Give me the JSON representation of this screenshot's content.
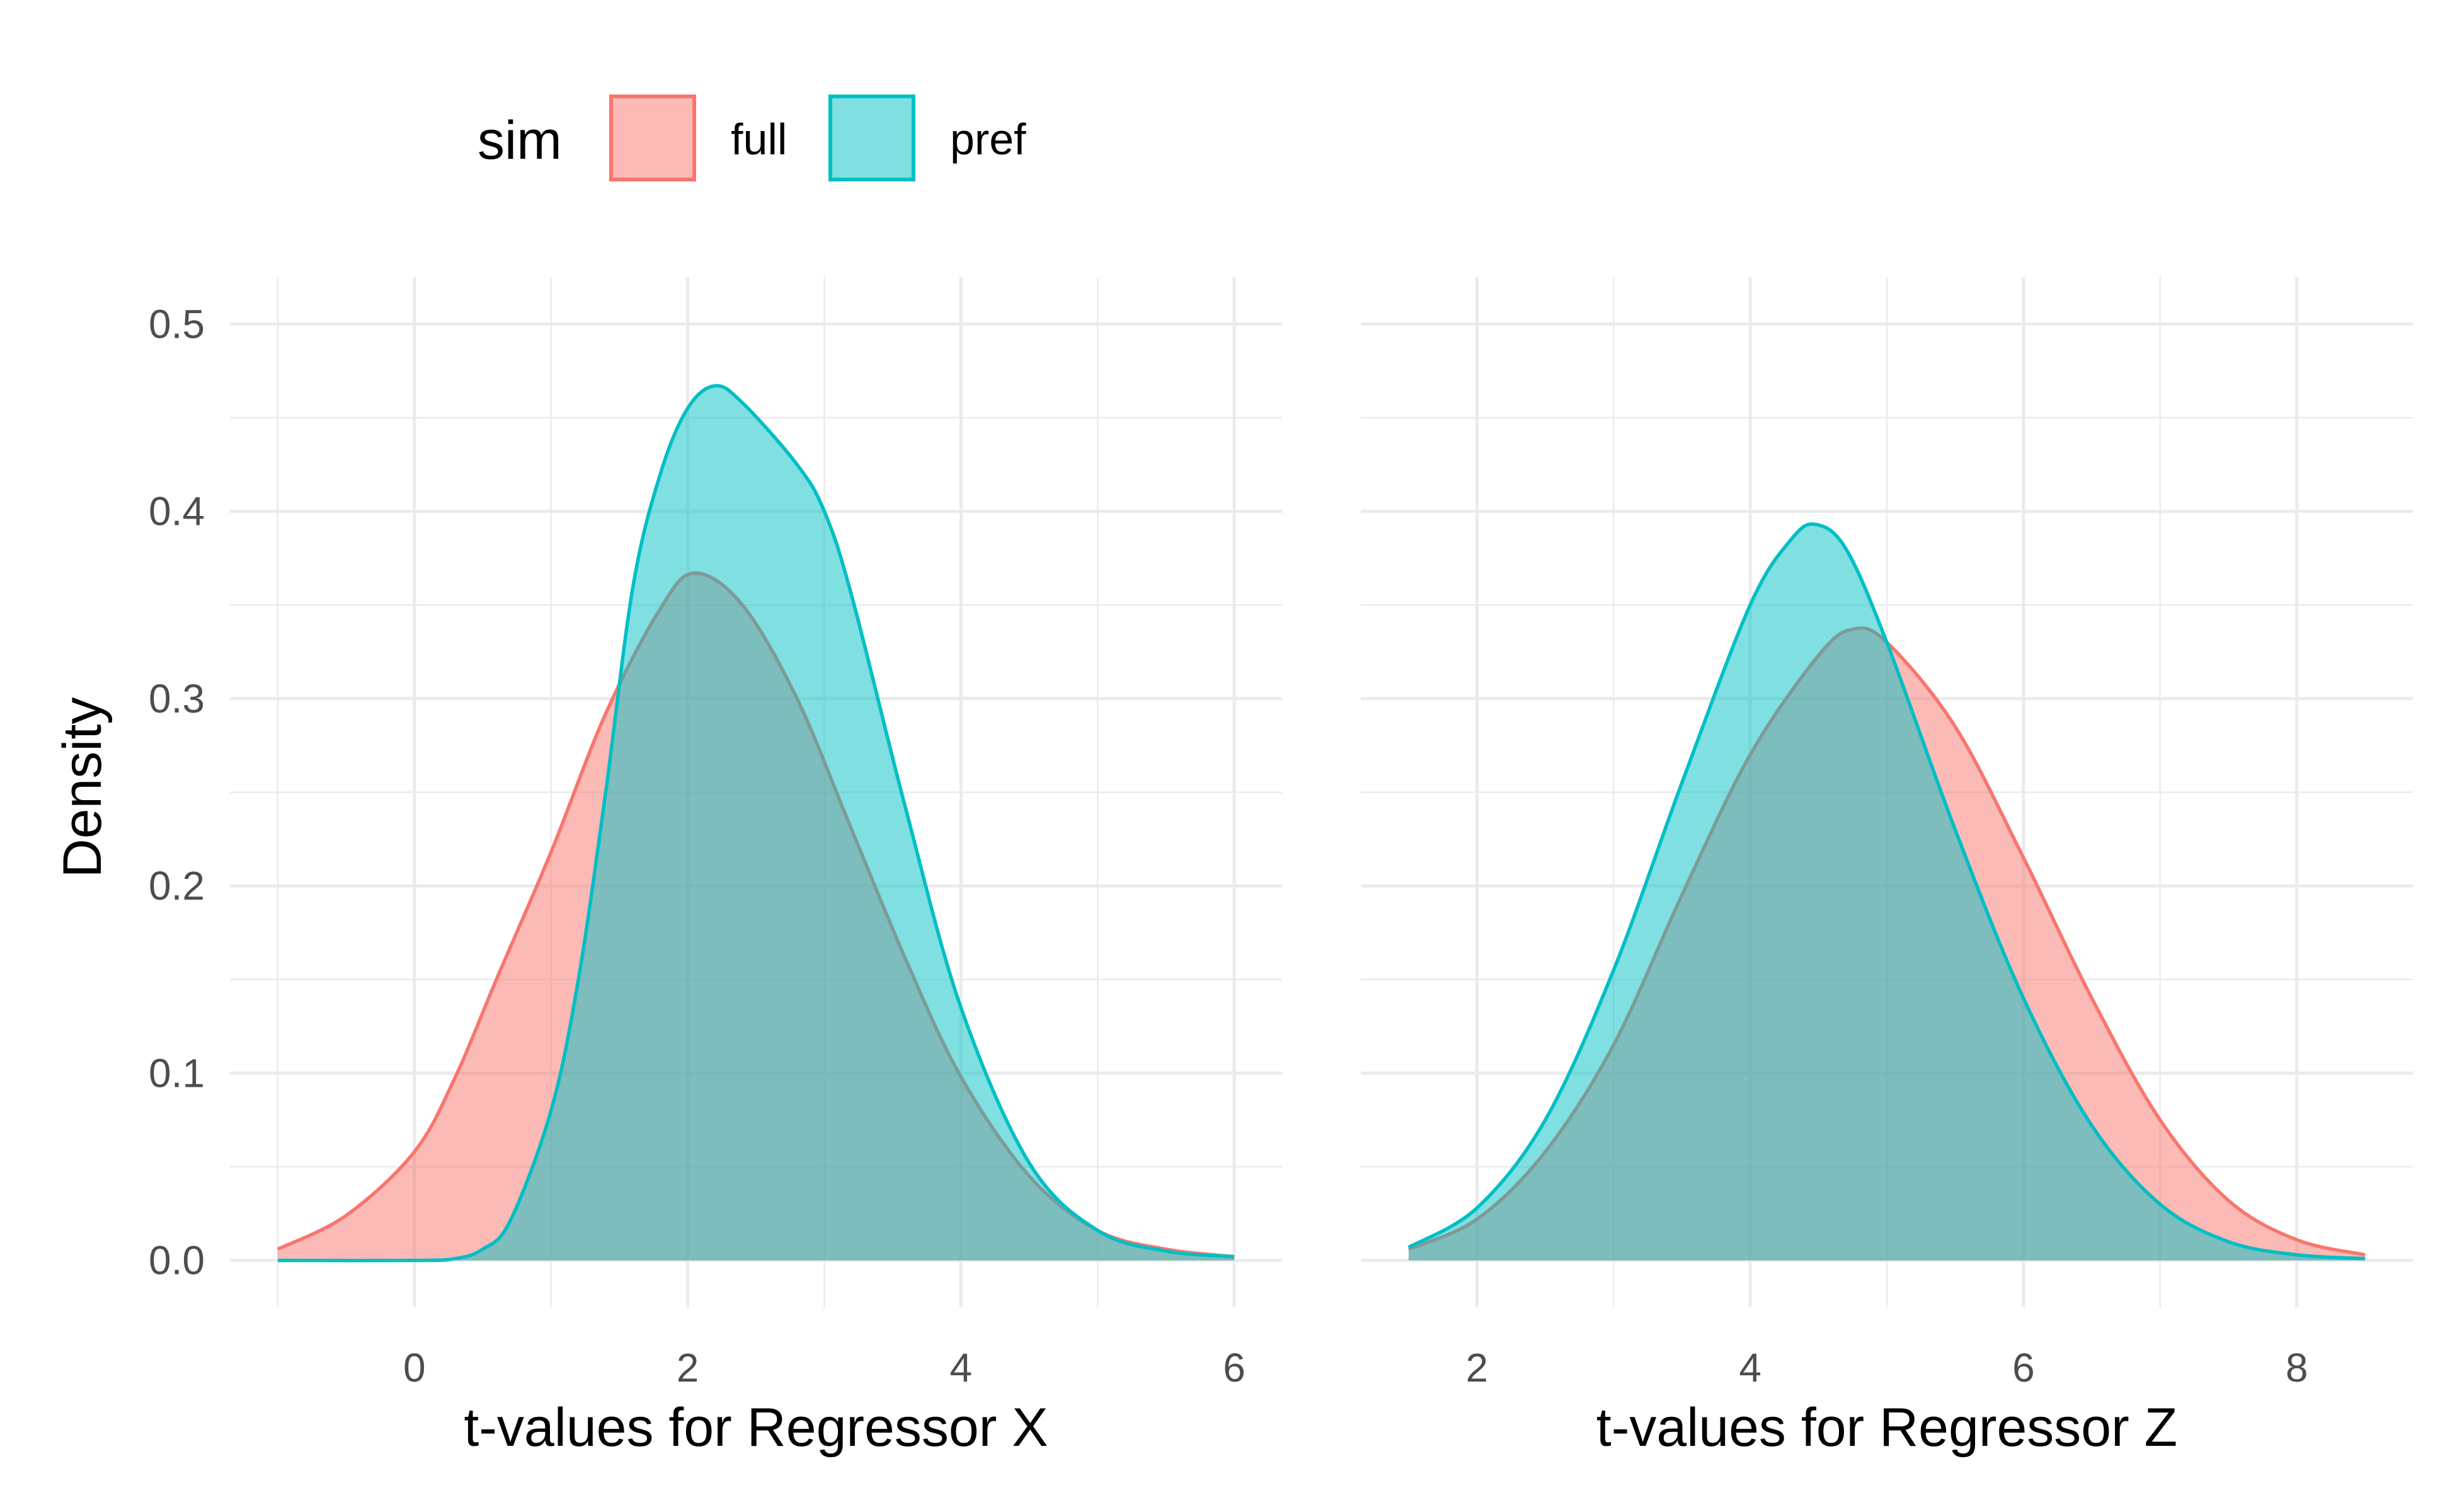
{
  "chart_data": [
    {
      "type": "area",
      "xlabel": "t-values for Regressor X",
      "ylabel": "Density",
      "xlim": [
        -1.35,
        6.35
      ],
      "ylim": [
        -0.025,
        0.525
      ],
      "x_ticks": [
        "0",
        "2",
        "4",
        "6"
      ],
      "x_tick_values": [
        0,
        2,
        4,
        6
      ],
      "y_ticks": [
        "0.0",
        "0.1",
        "0.2",
        "0.3",
        "0.4",
        "0.5"
      ],
      "y_tick_values": [
        0,
        0.1,
        0.2,
        0.3,
        0.4,
        0.5
      ],
      "grid": true,
      "series": [
        {
          "name": "full",
          "x": [
            -1.0,
            -0.5,
            0.0,
            0.3,
            0.6,
            1.0,
            1.4,
            1.8,
            2.05,
            2.4,
            2.8,
            3.2,
            3.6,
            4.0,
            4.5,
            5.0,
            5.5,
            6.0
          ],
          "y": [
            0.006,
            0.024,
            0.058,
            0.098,
            0.15,
            0.218,
            0.292,
            0.348,
            0.367,
            0.35,
            0.3,
            0.23,
            0.16,
            0.098,
            0.045,
            0.016,
            0.006,
            0.002
          ]
        },
        {
          "name": "pref",
          "x": [
            -1.0,
            0.0,
            0.3,
            0.5,
            0.7,
            1.0,
            1.2,
            1.4,
            1.6,
            1.8,
            2.0,
            2.2,
            2.4,
            2.8,
            3.0,
            3.2,
            3.6,
            4.0,
            4.5,
            5.0,
            5.5,
            6.0
          ],
          "y": [
            0.0,
            0.0,
            0.001,
            0.006,
            0.021,
            0.08,
            0.15,
            0.25,
            0.36,
            0.42,
            0.455,
            0.467,
            0.458,
            0.425,
            0.4,
            0.355,
            0.24,
            0.135,
            0.052,
            0.016,
            0.005,
            0.002
          ]
        }
      ]
    },
    {
      "type": "area",
      "xlabel": "t-values for Regressor Z",
      "ylabel": "",
      "xlim": [
        1.15,
        8.85
      ],
      "ylim": [
        -0.025,
        0.525
      ],
      "x_ticks": [
        "2",
        "4",
        "6",
        "8"
      ],
      "x_tick_values": [
        2,
        4,
        6,
        8
      ],
      "y_ticks": [],
      "y_tick_values": [
        0,
        0.1,
        0.2,
        0.3,
        0.4,
        0.5
      ],
      "grid": true,
      "series": [
        {
          "name": "full",
          "x": [
            1.5,
            2.0,
            2.5,
            3.0,
            3.5,
            4.0,
            4.5,
            4.75,
            5.0,
            5.5,
            6.0,
            6.5,
            7.0,
            7.5,
            8.0,
            8.5
          ],
          "y": [
            0.006,
            0.022,
            0.058,
            0.115,
            0.195,
            0.27,
            0.323,
            0.337,
            0.33,
            0.285,
            0.215,
            0.14,
            0.075,
            0.032,
            0.011,
            0.003
          ]
        },
        {
          "name": "pref",
          "x": [
            1.5,
            2.0,
            2.5,
            3.0,
            3.5,
            4.0,
            4.3,
            4.48,
            4.7,
            5.0,
            5.5,
            6.0,
            6.5,
            7.0,
            7.5,
            8.0,
            8.5
          ],
          "y": [
            0.007,
            0.028,
            0.075,
            0.155,
            0.255,
            0.35,
            0.385,
            0.393,
            0.38,
            0.33,
            0.23,
            0.14,
            0.072,
            0.03,
            0.01,
            0.003,
            0.001
          ]
        }
      ]
    }
  ],
  "legend": {
    "title": "sim",
    "position": "top",
    "items": [
      {
        "label": "full",
        "fill": "#F8766D",
        "stroke": "#F8766D"
      },
      {
        "label": "pref",
        "fill": "#00BFC4",
        "stroke": "#00BFC4"
      }
    ]
  },
  "colors": {
    "full": "#F8766D",
    "pref": "#00BFC4",
    "grid": "#EBEBEB",
    "tick_text": "#4D4D4D"
  }
}
